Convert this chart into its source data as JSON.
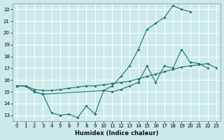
{
  "xlabel": "Humidex (Indice chaleur)",
  "bg_color": "#cceaea",
  "grid_color": "#ffffff",
  "line_color": "#1a7070",
  "xlim": [
    -0.5,
    23.5
  ],
  "ylim": [
    12.5,
    22.5
  ],
  "xticks": [
    0,
    1,
    2,
    3,
    4,
    5,
    6,
    7,
    8,
    9,
    10,
    11,
    12,
    13,
    14,
    15,
    16,
    17,
    18,
    19,
    20,
    21,
    22,
    23
  ],
  "yticks": [
    13,
    14,
    15,
    16,
    17,
    18,
    19,
    20,
    21,
    22
  ],
  "series1_x": [
    0,
    1,
    2,
    3,
    4,
    5,
    6,
    7,
    8,
    9,
    10,
    11,
    12,
    13,
    14,
    15,
    16,
    17,
    18,
    19,
    20,
    21,
    22
  ],
  "series1_y": [
    15.5,
    15.5,
    15.0,
    14.8,
    13.2,
    13.0,
    13.1,
    12.8,
    13.8,
    13.1,
    15.1,
    15.0,
    15.2,
    15.5,
    15.8,
    17.2,
    15.8,
    17.2,
    17.0,
    18.6,
    17.5,
    17.4,
    17.0
  ],
  "series2_x": [
    0,
    1,
    2,
    3,
    4,
    5,
    6,
    7,
    8,
    9,
    10,
    11,
    12,
    13,
    14,
    15,
    16,
    17,
    18,
    19,
    20,
    21,
    22,
    23
  ],
  "series2_y": [
    15.5,
    15.5,
    15.2,
    15.1,
    15.1,
    15.2,
    15.3,
    15.4,
    15.5,
    15.5,
    15.6,
    15.7,
    15.8,
    15.9,
    16.1,
    16.3,
    16.5,
    16.7,
    16.9,
    17.1,
    17.2,
    17.3,
    17.4,
    17.0
  ],
  "series3_x": [
    0,
    1,
    2,
    3,
    10,
    11,
    12,
    13,
    14,
    15,
    16,
    17,
    18,
    19,
    20
  ],
  "series3_y": [
    15.5,
    15.5,
    15.0,
    14.8,
    15.1,
    15.5,
    16.3,
    17.2,
    18.6,
    20.3,
    20.8,
    21.3,
    22.3,
    22.0,
    21.8
  ]
}
